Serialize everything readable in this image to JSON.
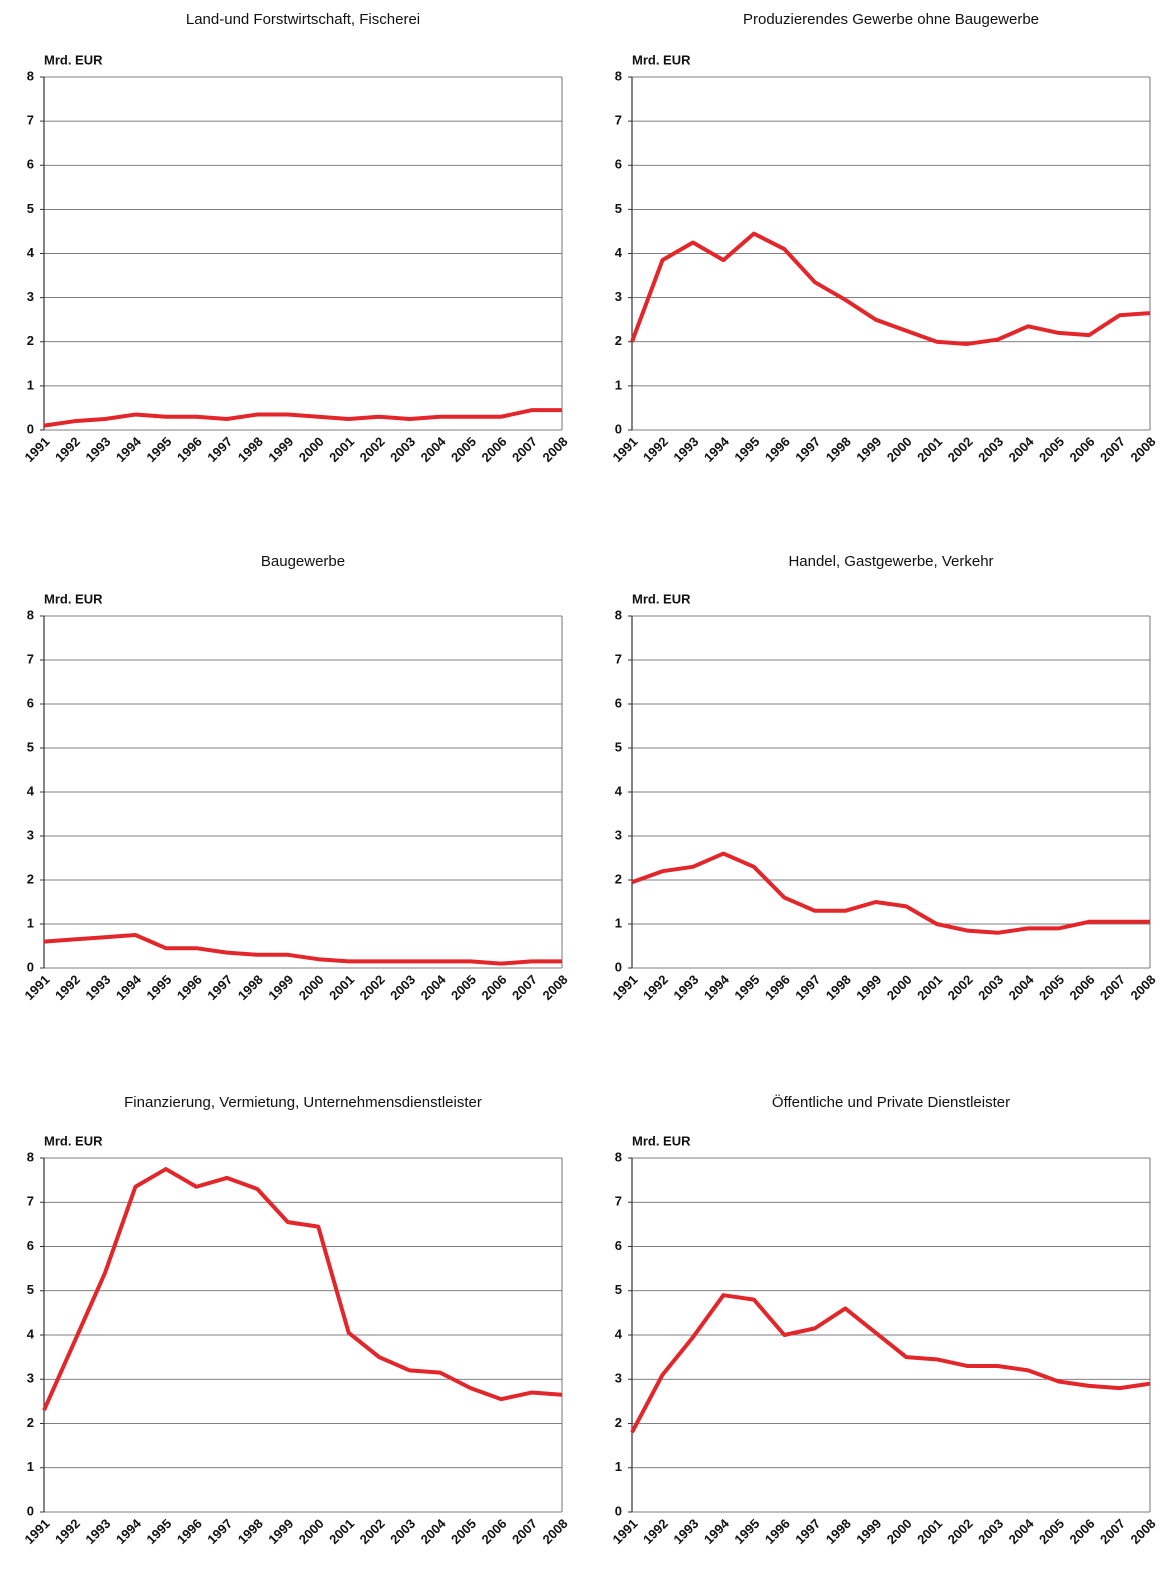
{
  "chart_data": [
    {
      "type": "line",
      "title": "Land-und Forstwirtschaft, Fischerei",
      "y_label": "Mrd. EUR",
      "categories": [
        "1991",
        "1992",
        "1993",
        "1994",
        "1995",
        "1996",
        "1997",
        "1998",
        "1999",
        "2000",
        "2001",
        "2002",
        "2003",
        "2004",
        "2005",
        "2006",
        "2007",
        "2008"
      ],
      "values": [
        0.1,
        0.2,
        0.25,
        0.35,
        0.3,
        0.3,
        0.25,
        0.35,
        0.35,
        0.3,
        0.25,
        0.3,
        0.25,
        0.3,
        0.3,
        0.3,
        0.45,
        0.45
      ],
      "color": "#e3262a",
      "ylim": [
        0,
        8
      ],
      "yticks": [
        0,
        1,
        2,
        3,
        4,
        5,
        6,
        7,
        8
      ],
      "grid": true
    },
    {
      "type": "line",
      "title": "Produzierendes Gewerbe ohne Baugewerbe",
      "y_label": "Mrd. EUR",
      "categories": [
        "1991",
        "1992",
        "1993",
        "1994",
        "1995",
        "1996",
        "1997",
        "1998",
        "1999",
        "2000",
        "2001",
        "2002",
        "2003",
        "2004",
        "2005",
        "2006",
        "2007",
        "2008"
      ],
      "values": [
        2.0,
        3.85,
        4.25,
        3.85,
        4.45,
        4.1,
        3.35,
        2.95,
        2.5,
        2.25,
        2.0,
        1.95,
        2.05,
        2.35,
        2.2,
        2.15,
        2.6,
        2.65
      ],
      "color": "#e3262a",
      "ylim": [
        0,
        8
      ],
      "yticks": [
        0,
        1,
        2,
        3,
        4,
        5,
        6,
        7,
        8
      ],
      "grid": true
    },
    {
      "type": "line",
      "title": "Baugewerbe",
      "y_label": "Mrd. EUR",
      "categories": [
        "1991",
        "1992",
        "1993",
        "1994",
        "1995",
        "1996",
        "1997",
        "1998",
        "1999",
        "2000",
        "2001",
        "2002",
        "2003",
        "2004",
        "2005",
        "2006",
        "2007",
        "2008"
      ],
      "values": [
        0.6,
        0.65,
        0.7,
        0.75,
        0.45,
        0.45,
        0.35,
        0.3,
        0.3,
        0.2,
        0.15,
        0.15,
        0.15,
        0.15,
        0.15,
        0.1,
        0.15,
        0.15
      ],
      "color": "#e3262a",
      "ylim": [
        0,
        8
      ],
      "yticks": [
        0,
        1,
        2,
        3,
        4,
        5,
        6,
        7,
        8
      ],
      "grid": true
    },
    {
      "type": "line",
      "title": "Handel, Gastgewerbe, Verkehr",
      "y_label": "Mrd. EUR",
      "categories": [
        "1991",
        "1992",
        "1993",
        "1994",
        "1995",
        "1996",
        "1997",
        "1998",
        "1999",
        "2000",
        "2001",
        "2002",
        "2003",
        "2004",
        "2005",
        "2006",
        "2007",
        "2008"
      ],
      "values": [
        1.95,
        2.2,
        2.3,
        2.6,
        2.3,
        1.6,
        1.3,
        1.3,
        1.5,
        1.4,
        1.0,
        0.85,
        0.8,
        0.9,
        0.9,
        1.05,
        1.05,
        1.05
      ],
      "color": "#e3262a",
      "ylim": [
        0,
        8
      ],
      "yticks": [
        0,
        1,
        2,
        3,
        4,
        5,
        6,
        7,
        8
      ],
      "grid": true
    },
    {
      "type": "line",
      "title": "Finanzierung, Vermietung, Unternehmensdienstleister",
      "y_label": "Mrd. EUR",
      "categories": [
        "1991",
        "1992",
        "1993",
        "1994",
        "1995",
        "1996",
        "1997",
        "1998",
        "1999",
        "2000",
        "2001",
        "2002",
        "2003",
        "2004",
        "2005",
        "2006",
        "2007",
        "2008"
      ],
      "values": [
        2.3,
        3.85,
        5.4,
        7.35,
        7.75,
        7.35,
        7.55,
        7.3,
        6.55,
        6.45,
        4.05,
        3.5,
        3.2,
        3.15,
        2.8,
        2.55,
        2.7,
        2.65
      ],
      "color": "#e3262a",
      "ylim": [
        0,
        8
      ],
      "yticks": [
        0,
        1,
        2,
        3,
        4,
        5,
        6,
        7,
        8
      ],
      "grid": true
    },
    {
      "type": "line",
      "title": "Öffentliche und Private Dienstleister",
      "y_label": "Mrd. EUR",
      "categories": [
        "1991",
        "1992",
        "1993",
        "1994",
        "1995",
        "1996",
        "1997",
        "1998",
        "1999",
        "2000",
        "2001",
        "2002",
        "2003",
        "2004",
        "2005",
        "2006",
        "2007",
        "2008"
      ],
      "values": [
        1.8,
        3.1,
        3.95,
        4.9,
        4.8,
        4.0,
        4.15,
        4.6,
        4.05,
        3.5,
        3.45,
        3.3,
        3.3,
        3.2,
        2.95,
        2.85,
        2.8,
        2.9
      ],
      "color": "#e3262a",
      "ylim": [
        0,
        8
      ],
      "yticks": [
        0,
        1,
        2,
        3,
        4,
        5,
        6,
        7,
        8
      ],
      "grid": true
    }
  ]
}
